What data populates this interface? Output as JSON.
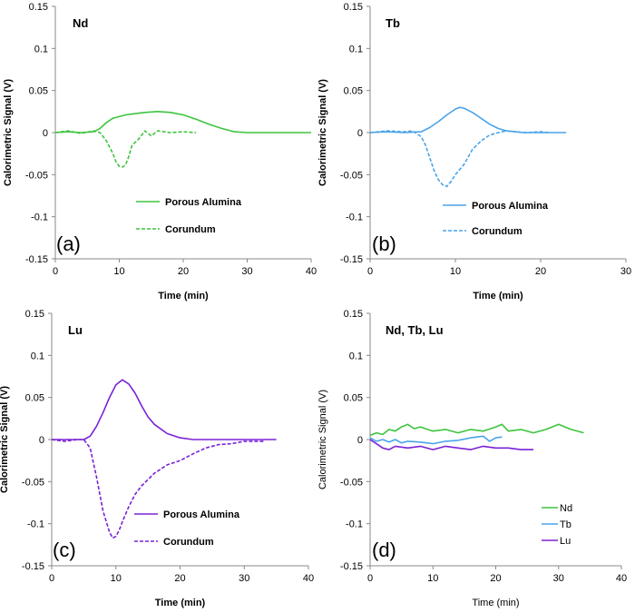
{
  "chart_data": [
    {
      "type": "line",
      "panel_label": "(a)",
      "title": "Nd",
      "xlabel": "Time (min)",
      "ylabel": "Calorimetric Signal (V)",
      "xlim": [
        0,
        40
      ],
      "ylim": [
        -0.15,
        0.15
      ],
      "xticks": [
        "0",
        "10",
        "20",
        "30",
        "40"
      ],
      "yticks": [
        "0.15",
        "0.1",
        "0.05",
        "0",
        "-0.05",
        "-0.1",
        "-0.15"
      ],
      "color": "#3ec43e",
      "legend_position": "bottom-right",
      "series": [
        {
          "name": "Porous Alumina",
          "dash": "solid",
          "x": [
            0,
            2,
            4,
            6,
            7,
            8,
            9,
            10,
            11,
            12,
            14,
            16,
            18,
            20,
            22,
            24,
            26,
            28,
            30,
            34,
            40
          ],
          "y": [
            0,
            0.001,
            0,
            0.001,
            0.005,
            0.012,
            0.017,
            0.019,
            0.021,
            0.022,
            0.024,
            0.025,
            0.024,
            0.021,
            0.016,
            0.01,
            0.005,
            0.001,
            0,
            0,
            0
          ]
        },
        {
          "name": "Corundum",
          "dash": "dashed",
          "x": [
            0,
            2,
            4,
            6,
            7,
            8,
            9,
            9.5,
            10,
            10.5,
            11,
            11.5,
            12,
            13,
            14,
            15,
            16,
            18,
            20,
            22
          ],
          "y": [
            0,
            0.002,
            -0.001,
            0.002,
            0,
            -0.01,
            -0.025,
            -0.035,
            -0.04,
            -0.041,
            -0.038,
            -0.028,
            -0.015,
            -0.008,
            0.002,
            -0.004,
            0.002,
            0,
            0.001,
            0
          ]
        }
      ]
    },
    {
      "type": "line",
      "panel_label": "(b)",
      "title": "Tb",
      "xlabel": "Time (min)",
      "ylabel": "Calorimetric Signal (V)",
      "xlim": [
        0,
        30
      ],
      "ylim": [
        -0.15,
        0.15
      ],
      "xticks": [
        "0",
        "10",
        "20",
        "30"
      ],
      "yticks": [
        "0.15",
        "0.1",
        "0.05",
        "0",
        "-0.05",
        "-0.1",
        "-0.15"
      ],
      "color": "#4aa3e8",
      "legend_position": "bottom-right",
      "series": [
        {
          "name": "Porous Alumina",
          "dash": "solid",
          "x": [
            0,
            2,
            4,
            6,
            7,
            8,
            9,
            10,
            10.5,
            11,
            12,
            13,
            14,
            15,
            16,
            17,
            18,
            20,
            22,
            23
          ],
          "y": [
            0,
            0.001,
            0,
            0.001,
            0.006,
            0.013,
            0.021,
            0.028,
            0.03,
            0.029,
            0.024,
            0.017,
            0.01,
            0.005,
            0.002,
            0.001,
            0,
            0,
            0,
            0
          ]
        },
        {
          "name": "Corundum",
          "dash": "dashed",
          "x": [
            0,
            2,
            4,
            5,
            6,
            6.5,
            7,
            7.5,
            8,
            8.5,
            9,
            9.5,
            10,
            11,
            12,
            13,
            14,
            15,
            16,
            18,
            20,
            21
          ],
          "y": [
            0,
            0.002,
            0.001,
            0.002,
            -0.005,
            -0.015,
            -0.03,
            -0.045,
            -0.056,
            -0.062,
            -0.064,
            -0.058,
            -0.05,
            -0.038,
            -0.02,
            -0.01,
            -0.003,
            0,
            0.002,
            0,
            0.001,
            0
          ]
        }
      ]
    },
    {
      "type": "line",
      "panel_label": "(c)",
      "title": "Lu",
      "xlabel": "Time (min)",
      "ylabel": "Calorimetric Signal (V)",
      "xlim": [
        0,
        40
      ],
      "ylim": [
        -0.15,
        0.15
      ],
      "xticks": [
        "0",
        "10",
        "20",
        "30",
        "40"
      ],
      "yticks": [
        "0.15",
        "0.1",
        "0.05",
        "0",
        "-0.05",
        "-0.1",
        "-0.15"
      ],
      "color": "#7a22d6",
      "legend_position": "bottom-right",
      "series": [
        {
          "name": "Porous Alumina",
          "dash": "solid",
          "x": [
            0,
            2,
            4,
            5,
            6,
            7,
            8,
            9,
            10,
            11,
            12,
            13,
            14,
            15,
            16,
            18,
            20,
            22,
            25,
            30,
            35
          ],
          "y": [
            0,
            0,
            0,
            0,
            0.004,
            0.016,
            0.032,
            0.05,
            0.065,
            0.071,
            0.066,
            0.055,
            0.04,
            0.027,
            0.018,
            0.007,
            0.002,
            0,
            0,
            0,
            0
          ]
        },
        {
          "name": "Corundum",
          "dash": "dashed",
          "x": [
            0,
            2,
            4,
            5,
            6,
            7,
            8,
            9,
            9.5,
            10,
            10.5,
            11,
            12,
            13,
            14,
            16,
            18,
            20,
            22,
            24,
            26,
            28,
            30,
            32,
            33
          ],
          "y": [
            0,
            -0.002,
            0,
            0,
            -0.01,
            -0.045,
            -0.085,
            -0.11,
            -0.117,
            -0.115,
            -0.108,
            -0.098,
            -0.08,
            -0.065,
            -0.055,
            -0.04,
            -0.03,
            -0.025,
            -0.017,
            -0.01,
            -0.006,
            -0.005,
            -0.002,
            -0.002,
            -0.002
          ]
        }
      ]
    },
    {
      "type": "line",
      "panel_label": "(d)",
      "title": "Nd, Tb, Lu",
      "xlabel": "Time (min)",
      "ylabel": "Calorimetric Signal (V)",
      "xlim": [
        0,
        40
      ],
      "ylim": [
        -0.15,
        0.15
      ],
      "xticks": [
        "0",
        "10",
        "20",
        "30",
        "40"
      ],
      "yticks": [
        "0.15",
        "0.1",
        "0.05",
        "0",
        "-0.05",
        "-0.1",
        "-0.15"
      ],
      "legend_position": "bottom-right",
      "series": [
        {
          "name": "Nd",
          "color": "#3ec43e",
          "dash": "solid",
          "x": [
            0,
            1,
            2,
            3,
            4,
            5,
            6,
            7,
            8,
            10,
            12,
            14,
            16,
            18,
            20,
            21,
            22,
            24,
            26,
            28,
            30,
            31,
            32,
            34
          ],
          "y": [
            0.005,
            0.008,
            0.006,
            0.012,
            0.01,
            0.015,
            0.018,
            0.013,
            0.015,
            0.01,
            0.012,
            0.008,
            0.012,
            0.01,
            0.015,
            0.018,
            0.01,
            0.012,
            0.008,
            0.012,
            0.018,
            0.015,
            0.012,
            0.008
          ]
        },
        {
          "name": "Tb",
          "color": "#4aa3e8",
          "dash": "solid",
          "x": [
            0,
            1,
            2,
            3,
            4,
            5,
            6,
            8,
            10,
            12,
            14,
            16,
            18,
            19,
            20,
            21
          ],
          "y": [
            0.002,
            -0.002,
            0,
            -0.003,
            0,
            -0.004,
            -0.002,
            -0.003,
            -0.005,
            -0.002,
            -0.001,
            0.002,
            0.004,
            -0.002,
            0.002,
            0.003
          ]
        },
        {
          "name": "Lu",
          "color": "#7a22d6",
          "dash": "solid",
          "x": [
            0,
            1,
            2,
            3,
            4,
            6,
            8,
            10,
            12,
            14,
            16,
            18,
            20,
            22,
            24,
            26
          ],
          "y": [
            0,
            -0.005,
            -0.01,
            -0.012,
            -0.008,
            -0.01,
            -0.008,
            -0.012,
            -0.008,
            -0.01,
            -0.012,
            -0.008,
            -0.01,
            -0.01,
            -0.012,
            -0.012
          ]
        }
      ]
    }
  ]
}
